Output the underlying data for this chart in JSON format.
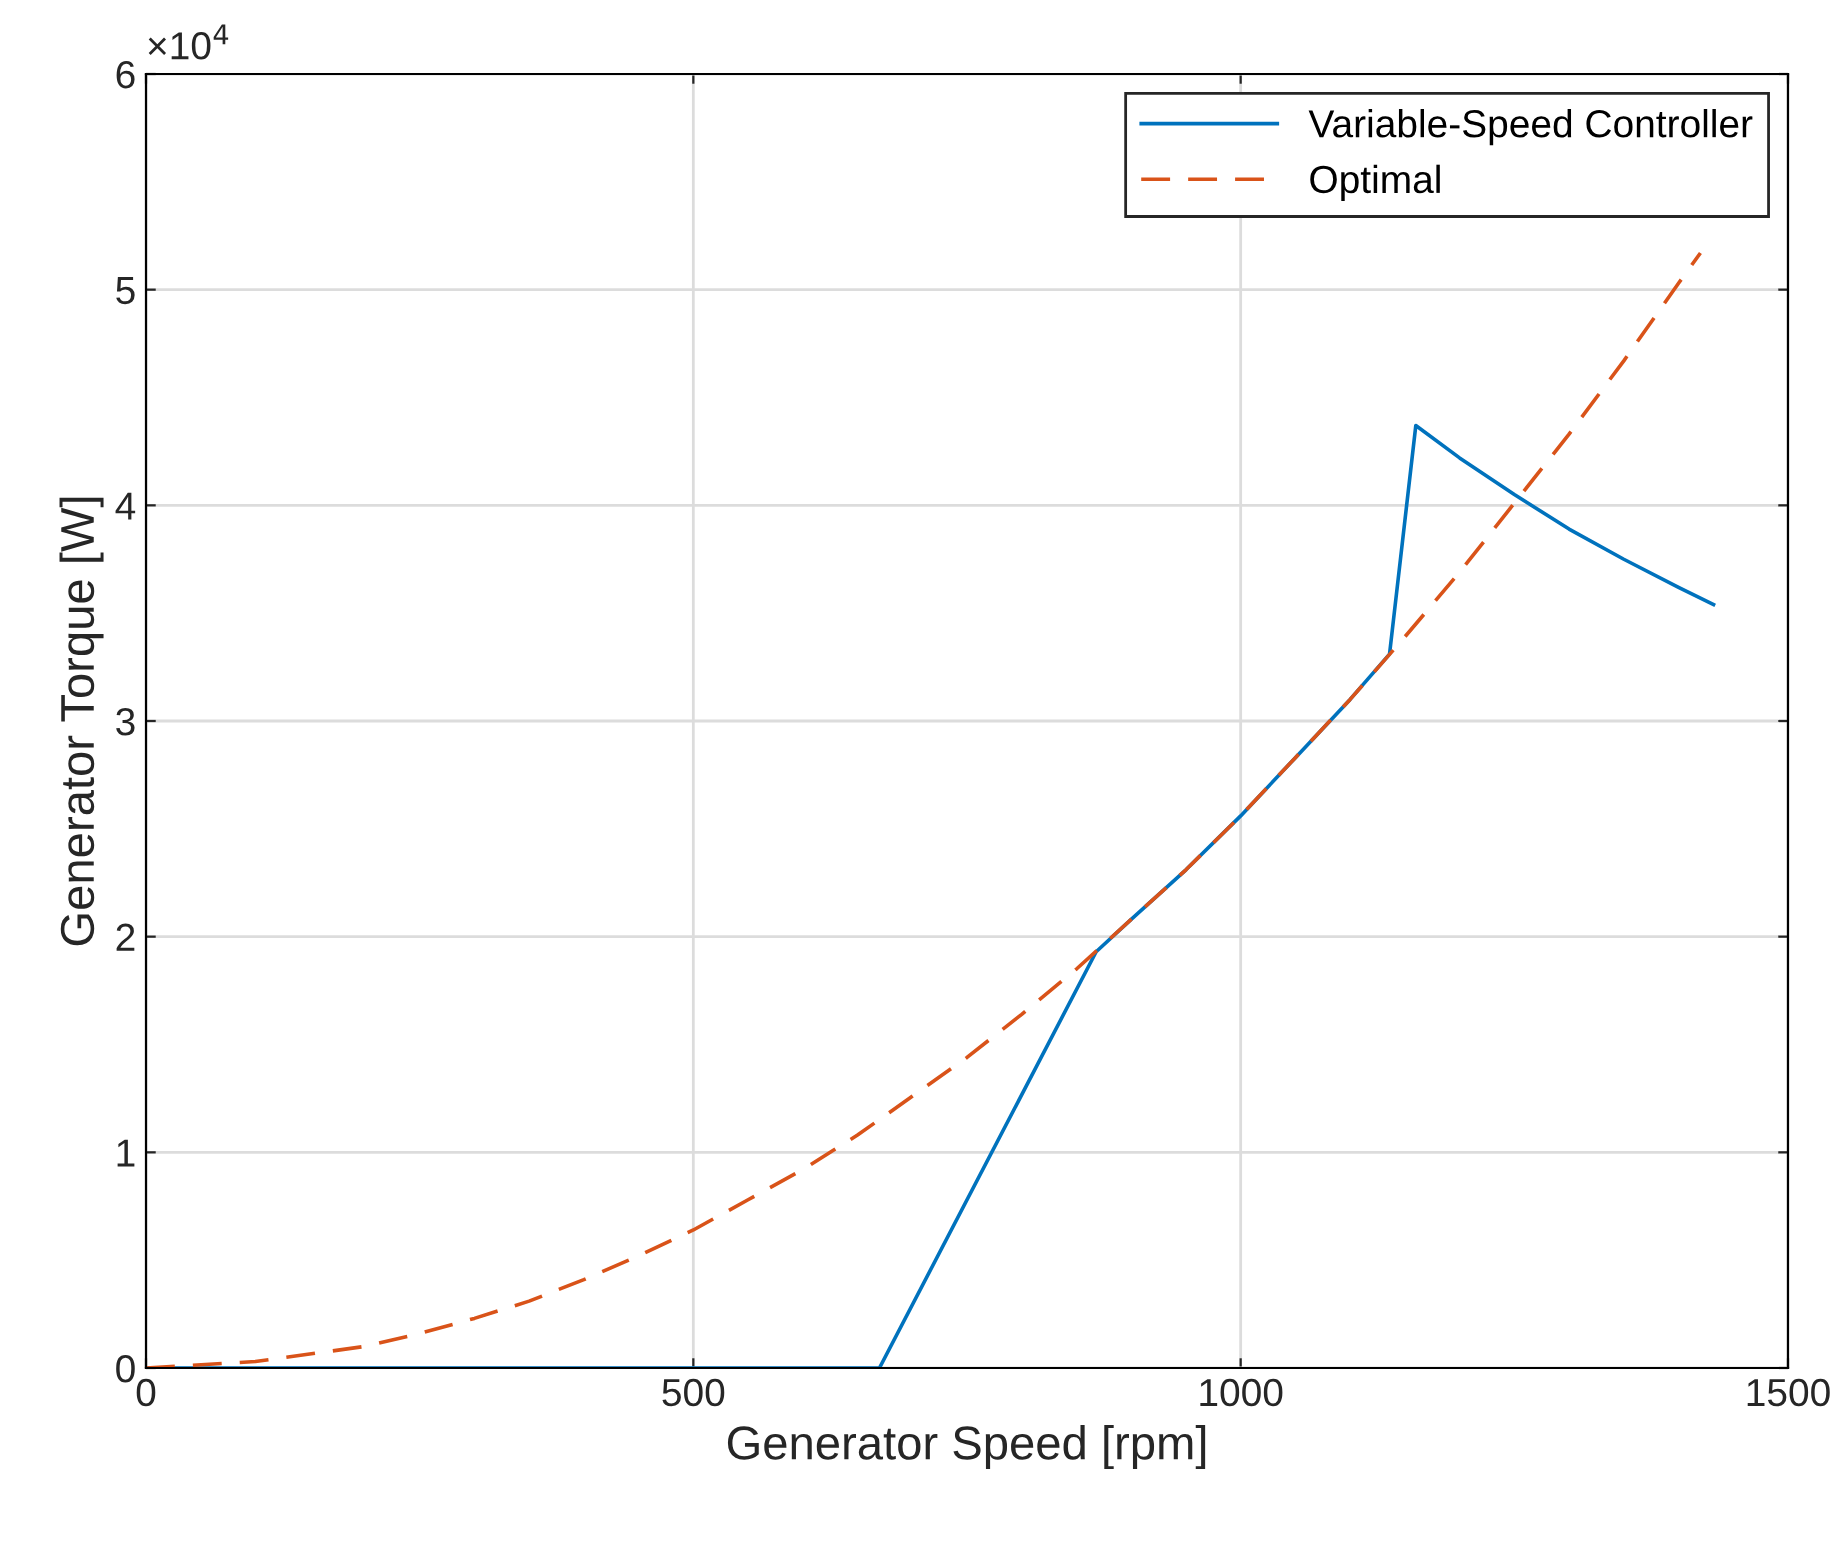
{
  "chart_data": {
    "type": "line",
    "xlabel": "Generator Speed [rpm]",
    "ylabel": "Generator Torque [W]",
    "xlim": [
      0,
      1500
    ],
    "xticks": [
      0,
      500,
      1000,
      1500
    ],
    "ylim": [
      0,
      6
    ],
    "yticks": [
      0,
      1,
      2,
      3,
      4,
      5,
      6
    ],
    "annotations": [
      "×10$^{4}$"
    ],
    "grid": true,
    "legend": "top right",
    "series": [
      {
        "name": "Variable-Speed Controller",
        "color": "#0072bd",
        "line_style": "solid",
        "x": [
          0,
          670,
          868,
          900,
          950,
          1000,
          1050,
          1100,
          1136,
          1160,
          1200,
          1250,
          1300,
          1350,
          1400,
          1432
        ],
        "values": [
          0,
          0,
          1.93,
          2.08,
          2.31,
          2.56,
          2.83,
          3.1,
          3.31,
          4.37,
          4.22,
          4.05,
          3.89,
          3.75,
          3.62,
          3.54
        ]
      },
      {
        "name": "Optimal",
        "color": "#d95319",
        "line_style": "dashed",
        "x": [
          0,
          100,
          200,
          250,
          300,
          350,
          400,
          450,
          500,
          550,
          600,
          650,
          700,
          750,
          800,
          850,
          900,
          950,
          1000,
          1050,
          1100,
          1150,
          1200,
          1250,
          1300,
          1350,
          1400,
          1420
        ],
        "values": [
          0,
          0.03,
          0.1,
          0.16,
          0.23,
          0.31,
          0.41,
          0.52,
          0.64,
          0.78,
          0.92,
          1.08,
          1.26,
          1.44,
          1.64,
          1.85,
          2.08,
          2.31,
          2.56,
          2.83,
          3.1,
          3.39,
          3.69,
          4.01,
          4.33,
          4.67,
          5.03,
          5.17
        ]
      }
    ]
  }
}
